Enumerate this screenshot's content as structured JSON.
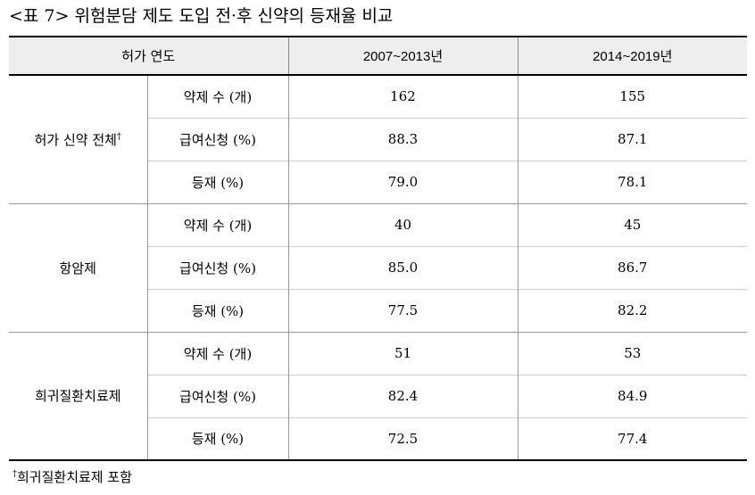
{
  "title": "<표 7> 위험분담 제도 도입 전·후 신약의 등재율 비교",
  "header": {
    "col1": "허가 연도",
    "col2": "2007~2013년",
    "col3": "2014~2019년"
  },
  "groups": [
    {
      "name": "허가 신약 전체",
      "mark": "†",
      "rows": [
        {
          "label": "약제 수 (개)",
          "v1": "162",
          "v2": "155"
        },
        {
          "label": "급여신청 (%)",
          "v1": "88.3",
          "v2": "87.1"
        },
        {
          "label": "등재 (%)",
          "v1": "79.0",
          "v2": "78.1"
        }
      ]
    },
    {
      "name": "항암제",
      "rows": [
        {
          "label": "약제 수 (개)",
          "v1": "40",
          "v2": "45"
        },
        {
          "label": "급여신청 (%)",
          "v1": "85.0",
          "v2": "86.7"
        },
        {
          "label": "등재 (%)",
          "v1": "77.5",
          "v2": "82.2"
        }
      ]
    },
    {
      "name": "희귀질환치료제",
      "rows": [
        {
          "label": "약제 수 (개)",
          "v1": "51",
          "v2": "53"
        },
        {
          "label": "급여신청 (%)",
          "v1": "82.4",
          "v2": "84.9"
        },
        {
          "label": "등재 (%)",
          "v1": "72.5",
          "v2": "77.4"
        }
      ]
    }
  ],
  "footnote": {
    "mark": "†",
    "text": "희귀질환치료제 포함"
  }
}
